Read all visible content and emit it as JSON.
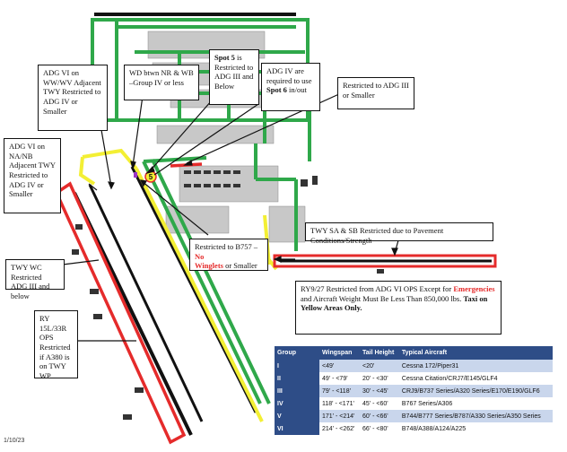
{
  "colors": {
    "green_route": "#2fa84a",
    "yellow_route": "#f3ef34",
    "red_route": "#e52b2b",
    "runway": "#111111",
    "table_header": "#2e4d87",
    "table_stripe": "#c9d6ec"
  },
  "callouts": {
    "adg6_ww_wv": "ADG VI on WW/WV Adjacent TWY Restricted to ADG IV or Smaller",
    "wd_group": "WD btwn NR & WB –Group IV or less",
    "spot5": {
      "bold": "Spot 5",
      "rest": " is Restricted to ADG III and Below"
    },
    "adg4_spot6": {
      "pre": "ADG IV are required to use ",
      "bold": "Spot 6",
      "post": " in/out"
    },
    "adg3_restricted": "Restricted to ADG III or Smaller",
    "adg6_na_nb": "ADG VI on NA/NB Adjacent TWY Restricted to ADG IV or Smaller",
    "twy_sa_sb": "TWY SA & SB Restricted due to Pavement Conditions/Strength",
    "b757": {
      "pre": "Restricted to B757 – ",
      "red1": "No",
      "red2": "Winglets",
      "post": " or Smaller"
    },
    "twy_wc": "TWY WC Restricted ADG III and below",
    "ry9_27": {
      "pre": "RY9/27 Restricted from ADG VI OPS Except for ",
      "red": "Emergencies",
      "mid": " and Aircraft Weight Must Be Less Than 850,000 lbs. ",
      "bold": "Taxi on Yellow Areas Only."
    },
    "ry15l_33r": "RY 15L/33R OPS Restricted if A380 is on TWY WP"
  },
  "spot_marker": "5",
  "table": {
    "headers": [
      "Group",
      "Wingspan",
      "Tail Height",
      "Typical Aircraft"
    ],
    "rows": [
      [
        "I",
        "<49'",
        "<20'",
        "Cessna 172/Piper31"
      ],
      [
        "II",
        "49' - <79'",
        "20' - <30'",
        "Cessna Citation/CRJ7/E145/GLF4"
      ],
      [
        "III",
        "79' - <118'",
        "30' - <45'",
        "CRJ9/B737 Series/A320 Series/E170/E190/GLF6"
      ],
      [
        "IV",
        "118' - <171'",
        "45' - <60'",
        "B767 Series/A306"
      ],
      [
        "V",
        "171' - <214'",
        "60' - <66'",
        "B744/B777 Series/B787/A330 Series/A350 Series"
      ],
      [
        "VI",
        "214' - <262'",
        "66' - <80'",
        "B748/A388/A124/A225"
      ]
    ]
  },
  "date": "1/10/23"
}
